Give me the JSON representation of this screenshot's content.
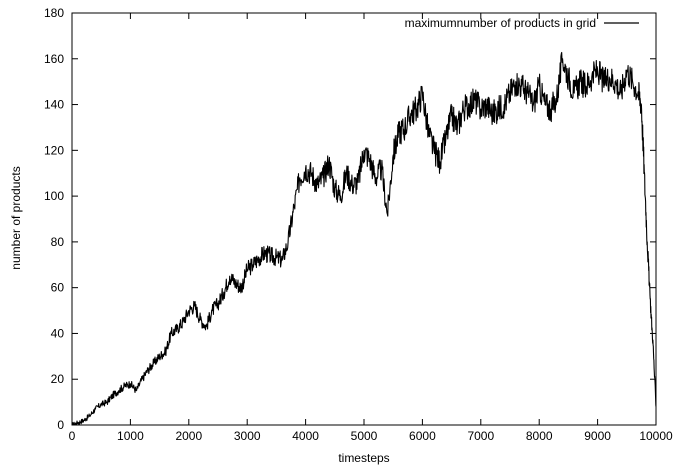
{
  "chart_data": {
    "type": "line",
    "title": "",
    "xlabel": "timesteps",
    "ylabel": "number of products",
    "xlim": [
      0,
      10000
    ],
    "ylim": [
      0,
      180
    ],
    "x_ticks": [
      0,
      1000,
      2000,
      3000,
      4000,
      5000,
      6000,
      7000,
      8000,
      9000,
      10000
    ],
    "y_ticks": [
      0,
      20,
      40,
      60,
      80,
      100,
      120,
      140,
      160,
      180
    ],
    "grid": false,
    "legend_position": "top-right",
    "line_color": "#000000",
    "series": [
      {
        "name": "maximumnumber of products in grid",
        "x": [
          0,
          100,
          200,
          300,
          400,
          500,
          600,
          700,
          800,
          900,
          1000,
          1100,
          1200,
          1300,
          1400,
          1500,
          1600,
          1700,
          1800,
          1900,
          2000,
          2100,
          2200,
          2300,
          2400,
          2500,
          2600,
          2700,
          2800,
          2900,
          3000,
          3100,
          3200,
          3300,
          3400,
          3500,
          3600,
          3700,
          3800,
          3900,
          4000,
          4100,
          4200,
          4300,
          4400,
          4500,
          4600,
          4700,
          4800,
          4900,
          5000,
          5100,
          5200,
          5300,
          5400,
          5500,
          5600,
          5700,
          5800,
          5900,
          6000,
          6100,
          6200,
          6300,
          6400,
          6500,
          6600,
          6700,
          6800,
          6900,
          7000,
          7100,
          7200,
          7300,
          7400,
          7500,
          7600,
          7700,
          7800,
          7900,
          8000,
          8100,
          8200,
          8300,
          8400,
          8500,
          8600,
          8700,
          8800,
          8900,
          9000,
          9100,
          9200,
          9300,
          9400,
          9500,
          9600,
          9700,
          9750,
          9800,
          9850,
          9900,
          9950,
          10000
        ],
        "y": [
          0,
          1,
          2,
          4,
          7,
          9,
          10,
          13,
          15,
          17,
          18,
          15,
          20,
          24,
          27,
          30,
          32,
          40,
          42,
          45,
          50,
          52,
          46,
          43,
          50,
          53,
          58,
          65,
          62,
          60,
          68,
          70,
          73,
          75,
          74,
          73,
          72,
          80,
          95,
          108,
          112,
          110,
          105,
          108,
          115,
          103,
          100,
          110,
          105,
          106,
          120,
          116,
          108,
          112,
          92,
          118,
          128,
          130,
          136,
          138,
          145,
          128,
          120,
          115,
          125,
          135,
          130,
          138,
          140,
          142,
          138,
          140,
          136,
          138,
          140,
          145,
          150,
          148,
          145,
          140,
          148,
          140,
          138,
          143,
          160,
          152,
          145,
          150,
          148,
          152,
          155,
          150,
          152,
          150,
          145,
          155,
          150,
          145,
          140,
          110,
          80,
          55,
          35,
          8
        ]
      }
    ]
  }
}
